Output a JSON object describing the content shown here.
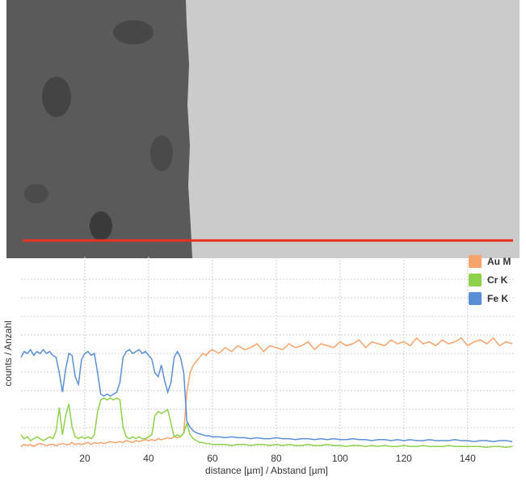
{
  "chart_data": {
    "type": "line",
    "xlabel": "distance [µm] / Abstand [µm]",
    "ylabel": "counts / Anzahl",
    "xlim": [
      0,
      155
    ],
    "ylim": [
      0,
      100
    ],
    "xticks": [
      20,
      40,
      60,
      80,
      100,
      120,
      140
    ],
    "grid": true,
    "legend": "top-right",
    "x": [
      0,
      1,
      2,
      3,
      4,
      5,
      6,
      7,
      8,
      9,
      10,
      11,
      12,
      13,
      14,
      15,
      16,
      17,
      18,
      19,
      20,
      21,
      22,
      23,
      24,
      25,
      26,
      27,
      28,
      29,
      30,
      31,
      32,
      33,
      34,
      35,
      36,
      37,
      38,
      39,
      40,
      41,
      42,
      43,
      44,
      45,
      46,
      47,
      48,
      49,
      50,
      51,
      52,
      53,
      54,
      55,
      56,
      57,
      58,
      59,
      60,
      62,
      64,
      66,
      68,
      70,
      72,
      74,
      76,
      78,
      80,
      82,
      84,
      86,
      88,
      90,
      92,
      94,
      96,
      98,
      100,
      102,
      104,
      106,
      108,
      110,
      112,
      114,
      116,
      118,
      120,
      122,
      124,
      126,
      128,
      130,
      132,
      134,
      136,
      138,
      140,
      142,
      144,
      146,
      148,
      150,
      152,
      154
    ],
    "series": [
      {
        "name": "Au M",
        "color": "#f5a46c",
        "values": [
          2,
          3,
          2.5,
          3,
          2,
          3,
          3.5,
          3,
          2.5,
          3,
          3,
          2.5,
          3,
          3.5,
          3,
          3,
          4,
          3,
          3.5,
          3,
          3.5,
          4,
          3,
          4,
          3.5,
          4,
          3.5,
          4,
          4.5,
          4,
          4,
          4.5,
          4,
          5,
          4.5,
          4,
          5,
          4.5,
          5,
          5.5,
          5,
          5.5,
          5,
          6,
          5.5,
          6,
          6.5,
          6,
          7,
          6.5,
          7,
          9,
          30,
          40,
          44,
          46,
          48,
          50,
          49,
          51,
          52,
          50,
          53,
          51,
          54,
          52,
          53,
          55,
          51,
          54,
          53,
          52,
          55,
          53,
          54,
          56,
          52,
          55,
          54,
          53,
          56,
          54,
          55,
          57,
          53,
          56,
          55,
          54,
          57,
          55,
          56,
          54,
          58,
          55,
          56,
          54,
          57,
          55,
          56,
          58,
          54,
          56,
          57,
          55,
          58,
          54,
          56,
          55
        ]
      },
      {
        "name": "Cr K",
        "color": "#8ed14b",
        "values": [
          8,
          6,
          7,
          5,
          6,
          7,
          6,
          5,
          6,
          7,
          6,
          10,
          22,
          8,
          18,
          24,
          12,
          7,
          6,
          7,
          6,
          7,
          6,
          8,
          20,
          26,
          27,
          26,
          27,
          26,
          27,
          26,
          12,
          7,
          6,
          7,
          6,
          7,
          6,
          6,
          7,
          8,
          18,
          20,
          19,
          20,
          21,
          14,
          7,
          8,
          7,
          9,
          14,
          8,
          6,
          5,
          4,
          4,
          3.5,
          3.5,
          3,
          3,
          3,
          2.5,
          3,
          3,
          2.5,
          3,
          3,
          2.5,
          3,
          2.5,
          3,
          2.5,
          2.5,
          3,
          2.5,
          2.5,
          3,
          2.5,
          2.5,
          2,
          2.5,
          2.5,
          2,
          2.5,
          2,
          2.5,
          2,
          2,
          2.5,
          2,
          2,
          2.5,
          2,
          2,
          2,
          2.5,
          2,
          2,
          2,
          2,
          2,
          1.5,
          2,
          2,
          1.5,
          2
        ]
      },
      {
        "name": "Fe K",
        "color": "#5b8fd5",
        "values": [
          48,
          51,
          50,
          52,
          49,
          51,
          50,
          52,
          50,
          51,
          49,
          48,
          40,
          30,
          42,
          50,
          49,
          38,
          34,
          47,
          50,
          51,
          49,
          50,
          40,
          29,
          28,
          29,
          28,
          29,
          30,
          35,
          48,
          51,
          52,
          50,
          51,
          52,
          50,
          51,
          49,
          47,
          40,
          38,
          44,
          36,
          30,
          35,
          48,
          51,
          48,
          40,
          15,
          12,
          10,
          9,
          8.5,
          8,
          7.5,
          7.5,
          7,
          7,
          6.5,
          7,
          6.5,
          6.5,
          6,
          6.5,
          6,
          6,
          6.5,
          6,
          6,
          5.5,
          6,
          6,
          5.5,
          6,
          5.5,
          6,
          5.5,
          5.5,
          6,
          5.5,
          5.5,
          5,
          5.5,
          5.5,
          5,
          5.5,
          5,
          5.5,
          5,
          5,
          5.5,
          5,
          5,
          5,
          5.5,
          5,
          5,
          4.5,
          5,
          5,
          4.5,
          5,
          5,
          4.5
        ]
      }
    ]
  }
}
